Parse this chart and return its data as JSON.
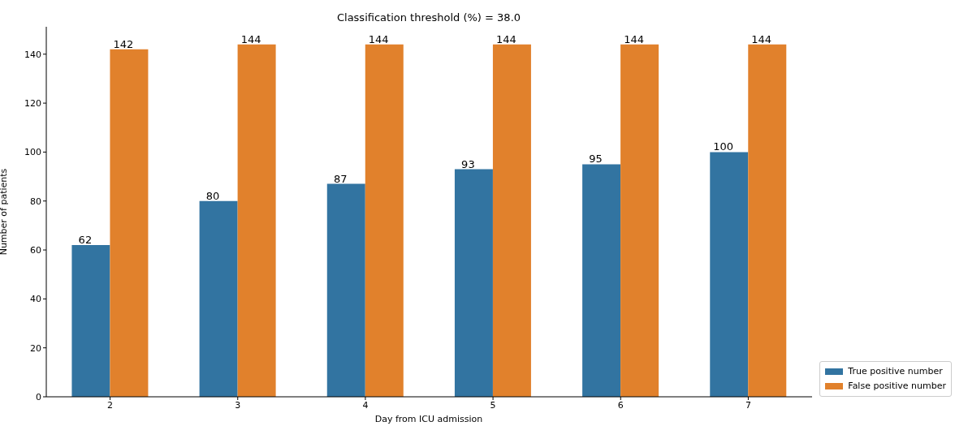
{
  "chart_data": {
    "type": "bar",
    "title": "Classification threshold (%) = 38.0",
    "xlabel": "Day from ICU admission",
    "ylabel": "Number of patients",
    "categories": [
      "2",
      "3",
      "4",
      "5",
      "6",
      "7"
    ],
    "series": [
      {
        "name": "True positive number",
        "color": "#3274a1",
        "values": [
          62,
          80,
          87,
          93,
          95,
          100
        ]
      },
      {
        "name": "False positive number",
        "color": "#e1812c",
        "values": [
          142,
          144,
          144,
          144,
          144,
          144
        ]
      }
    ],
    "ylim": [
      0,
      151.2
    ],
    "yticks": [
      0,
      20,
      40,
      60,
      80,
      100,
      120,
      140
    ],
    "grid": false,
    "legend": "bottom right",
    "data_labels": true
  }
}
